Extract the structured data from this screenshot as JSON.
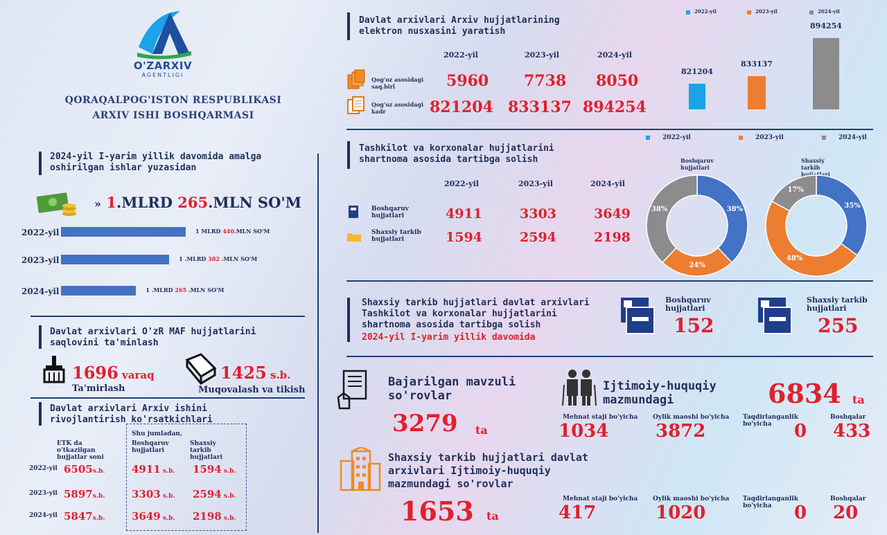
{
  "logo": {
    "name": "O'ZARXIV",
    "sub": "AGENTLIGI"
  },
  "org": {
    "line1": "QORAQALPOG'ISTON RESPUBLIKASI",
    "line2": "ARXIV ISHI  BOSHQARMASI"
  },
  "colors": {
    "blue": "#4472c4",
    "lightblue": "#1aa3e8",
    "orange": "#ed7d31",
    "gray": "#8c8c8c",
    "red": "#e0202e",
    "navy": "#1f2f5a"
  },
  "money": {
    "header": "2024-yil  I-yarim yillik davomida amalga oshirilgan ishlar yuzasidan",
    "total_a": "1",
    "total_b": ".MLRD ",
    "total_c": "265",
    "total_d": ".MLN SO'M",
    "rows": [
      {
        "year": "2022-yil",
        "pre": "1 MLRD ",
        "mid": "440",
        "post": ".MLN SO'M",
        "value": 440
      },
      {
        "year": "2023-yil",
        "pre": "1 .MLRD ",
        "mid": "382",
        "post": " .MLN SO'M",
        "value": 382
      },
      {
        "year": "2024-yil",
        "pre": "1 .MLRD ",
        "mid": "265",
        "post": " .MLN SO'M",
        "value": 265
      }
    ]
  },
  "maf": {
    "header": "Davlat arxivlari  O'zR MAF hujjatlarini saqlovini ta'minlash",
    "a_num": "1696",
    "a_unit": " varaq",
    "a_label": "Ta'mirlash",
    "b_num": "1425",
    "b_unit": " s.b.",
    "b_label": "Muqovalash va tikish"
  },
  "dev": {
    "header": "Davlat arxivlari Arxiv ishini rivojlantirish ko'rsatkichlari",
    "col1": "ETK da o'tkazilgan hujjatlar soni",
    "sub": "Shu jumladan,",
    "col2": "Boshqaruv hujjatlari",
    "col3": "Shaxsiy tarkib hujjatlari",
    "unit": "s.b.",
    "rows": [
      {
        "year": "2022-yil",
        "a": "6505",
        "b": "4911",
        "c": "1594"
      },
      {
        "year": "2023-yil",
        "a": "5897",
        "b": "3303",
        "c": "2594"
      },
      {
        "year": "2024-yil",
        "a": "5847",
        "b": "3649",
        "c": "2198"
      }
    ]
  },
  "elec": {
    "header": "Davlat arxivlari Arxiv hujjatlarining elektron nusxasini yaratish",
    "years": [
      "2022-yil",
      "2023-yil",
      "2024-yil"
    ],
    "row1_label": "Qog'oz asosidagi saq.birl",
    "row1": [
      "5960",
      "7738",
      "8050"
    ],
    "row2_label": "Qog'oz asosidagi kadr",
    "row2": [
      "821204",
      "833137",
      "894254"
    ]
  },
  "chart_data": [
    {
      "type": "bar",
      "categories": [
        "2022-yil",
        "2023-yil",
        "2024-yil"
      ],
      "values": [
        821204,
        833137,
        894254
      ],
      "labels": [
        "821204",
        "833137",
        "894254"
      ],
      "legend": [
        "2022-yil",
        "2023-yil",
        "2024-yil"
      ]
    },
    {
      "type": "pie",
      "title": "Boshqaruv hujjatlari",
      "slices": [
        {
          "label": "2022-yil",
          "value": 38,
          "text": "38%"
        },
        {
          "label": "2023-yil",
          "value": 24,
          "text": "24%"
        },
        {
          "label": "2024-yil",
          "value": 38,
          "text": "38%"
        }
      ],
      "legend": [
        "2022-yil",
        "2023-yil",
        "2024-yil"
      ]
    },
    {
      "type": "pie",
      "title": "Shaxsiy tarkib hujjatlari",
      "slices": [
        {
          "label": "2022-yil",
          "value": 35,
          "text": "35%"
        },
        {
          "label": "2023-yil",
          "value": 48,
          "text": "48%"
        },
        {
          "label": "2024-yil",
          "value": 17,
          "text": "17%"
        }
      ]
    }
  ],
  "org2": {
    "header": "Tashkilot va korxonalar hujjatlarini shartnoma asosida tartibga solish",
    "years": [
      "2022-yil",
      "2023-yil",
      "2024-yil"
    ],
    "row1_label": "Boshqaruv hujjatlari",
    "row1": [
      "4911",
      "3303",
      "3649"
    ],
    "row2_label": "Shaxsiy tarkib hujjatlari",
    "row2": [
      "1594",
      "2594",
      "2198"
    ]
  },
  "pers": {
    "l1": "Shaxsiy tarkib hujjatlari davlat arxivlari",
    "l2": "Tashkilot va korxonalar hujjatlarini",
    "l3": "shartnoma asosida tartibga solish",
    "period": "2024-yil I-yarim yillik  davomida",
    "a_label": "Boshqaruv hujjatlari",
    "a_num": "152",
    "b_label": "Shaxsiy tarkib hujjatlari",
    "b_num": "255"
  },
  "req": {
    "t1": "Bajarilgan mavzuli so'rovlar",
    "n1": "3279",
    "unit": "ta",
    "t2": "Ijtimoiy-huquqiy mazmundagi",
    "n2": "6834",
    "cats": [
      "Mehnat staji bo'yicha",
      "Oylik maoshi bo'yicha",
      "Taqdirlanganlik bo'yicha",
      "Boshqalar"
    ],
    "v1": [
      "1034",
      "3872",
      "0",
      "433"
    ],
    "t3": "Shaxsiy tarkib hujjatlari davlat arxivlari Ijtimoiy-huquqiy mazmundagi so'rovlar",
    "n3": "1653",
    "v2": [
      "417",
      "1020",
      "0",
      "20"
    ]
  }
}
